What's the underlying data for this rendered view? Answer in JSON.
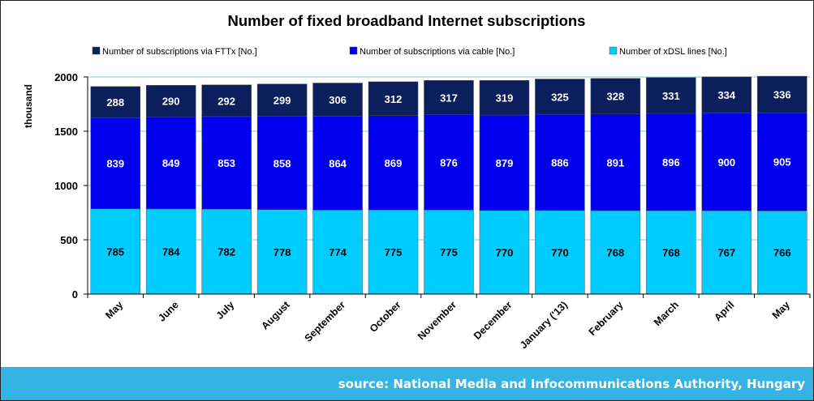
{
  "chart_data": {
    "type": "bar",
    "stacked": true,
    "title": "Number of fixed broadband Internet subscriptions",
    "ylabel": "thousand",
    "xlabel": "",
    "ylim": [
      0,
      2000
    ],
    "yticks": [
      0,
      500,
      1000,
      1500,
      2000
    ],
    "grid": true,
    "legend_position": "top",
    "categories": [
      "May",
      "June",
      "July",
      "August",
      "September",
      "October",
      "November",
      "December",
      "January ('13)",
      "February",
      "March",
      "April",
      "May"
    ],
    "series": [
      {
        "name": "Number of xDSL lines [No.]",
        "color": "#00ccff",
        "label_color": "#000000",
        "values": [
          785,
          784,
          782,
          778,
          774,
          775,
          775,
          770,
          770,
          768,
          768,
          767,
          766
        ]
      },
      {
        "name": "Number of subscriptions via cable [No.]",
        "color": "#0000ee",
        "label_color": "#ffffff",
        "values": [
          839,
          849,
          853,
          858,
          864,
          869,
          876,
          879,
          886,
          891,
          896,
          900,
          905
        ]
      },
      {
        "name": "Number of subscriptions via FTTx [No.]",
        "color": "#0a1f5c",
        "label_color": "#ffffff",
        "values": [
          288,
          290,
          292,
          299,
          306,
          312,
          317,
          319,
          325,
          328,
          331,
          334,
          336
        ]
      }
    ],
    "legend_order": [
      2,
      1,
      0
    ]
  },
  "footer": {
    "source": "source: National Media and Infocommunications Authority, Hungary"
  }
}
